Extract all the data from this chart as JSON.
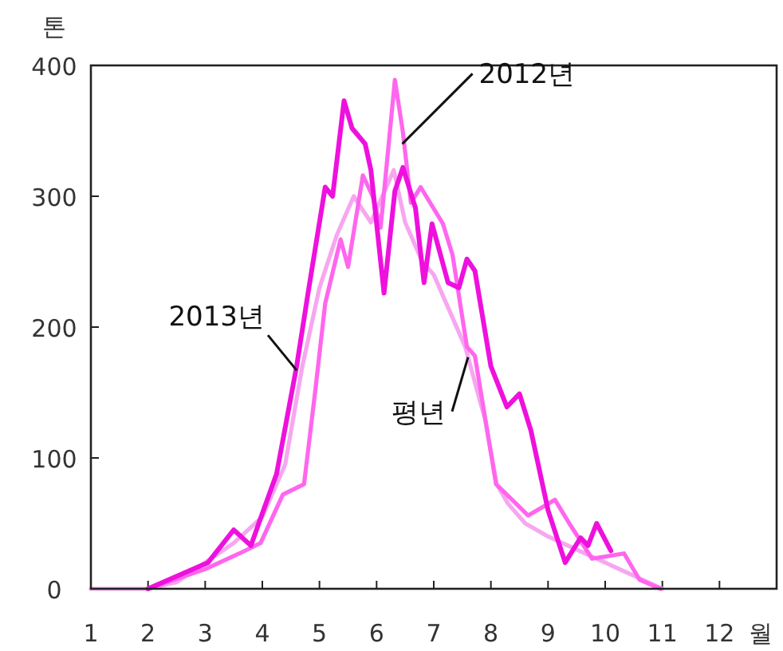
{
  "chart_data": {
    "type": "line",
    "xlabel": "월",
    "ylabel": "톤",
    "xlim": [
      1,
      13
    ],
    "xticks": [
      1,
      2,
      3,
      4,
      5,
      6,
      7,
      8,
      9,
      10,
      11,
      12
    ],
    "ylim": [
      0,
      400
    ],
    "yticks": [
      0,
      100,
      200,
      300,
      400
    ],
    "grid": false,
    "line_style": "solid",
    "series": [
      {
        "color": "#f7a6f0",
        "x": [
          1.0,
          2.0,
          2.5,
          3.0,
          3.5,
          4.0,
          4.4,
          4.7,
          5.0,
          5.3,
          5.6,
          5.9,
          6.1,
          6.3,
          6.5,
          6.8,
          7.0,
          7.3,
          7.55,
          7.9,
          8.1,
          8.3,
          8.6,
          9.0,
          9.5,
          10.0,
          10.5,
          11.0
        ],
        "values": [
          0,
          0,
          5,
          20,
          35,
          55,
          95,
          170,
          230,
          270,
          300,
          280,
          300,
          320,
          280,
          250,
          240,
          210,
          185,
          129,
          80,
          65,
          50,
          40,
          30,
          20,
          10,
          0
        ]
      },
      {
        "color": "#ff66ee",
        "x": [
          2.0,
          3.0,
          3.6,
          3.97,
          4.36,
          4.73,
          4.92,
          5.1,
          5.37,
          5.5,
          5.76,
          5.93,
          6.07,
          6.32,
          6.46,
          6.6,
          6.77,
          7.16,
          7.33,
          7.58,
          7.72,
          8.09,
          8.37,
          8.65,
          9.12,
          9.4,
          9.77,
          10.33,
          10.6,
          10.97
        ],
        "values": [
          0,
          15,
          27,
          35,
          72,
          80,
          149,
          218,
          267,
          246,
          316,
          300,
          276,
          389,
          349,
          295,
          307,
          279,
          255,
          185,
          178,
          80,
          68,
          56,
          68,
          48,
          23,
          27,
          7,
          0
        ]
      },
      {
        "color": "#ee11dd",
        "x": [
          2.0,
          3.05,
          3.5,
          3.8,
          3.97,
          4.25,
          4.6,
          4.8,
          5.1,
          5.23,
          5.43,
          5.57,
          5.8,
          5.9,
          6.13,
          6.32,
          6.46,
          6.68,
          6.83,
          6.97,
          7.25,
          7.44,
          7.58,
          7.72,
          8.0,
          8.28,
          8.5,
          8.7,
          9.0,
          9.3,
          9.57,
          9.7,
          9.85,
          10.1
        ],
        "values": [
          0,
          20,
          45,
          33,
          54,
          88,
          170,
          226,
          307,
          300,
          373,
          352,
          340,
          320,
          226,
          304,
          322,
          291,
          234,
          279,
          234,
          230,
          252,
          243,
          170,
          139,
          149,
          121,
          60,
          20,
          39,
          33,
          50,
          29
        ]
      }
    ],
    "annotations": [
      {
        "text": "2012년",
        "x": 6.45,
        "y": 340
      },
      {
        "text": "2013년",
        "x": 4.6,
        "y": 167
      },
      {
        "text": "평년",
        "x": 7.6,
        "y": 177
      }
    ]
  }
}
